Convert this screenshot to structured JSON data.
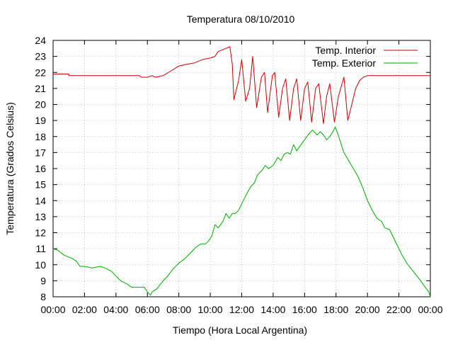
{
  "chart_data": {
    "type": "line",
    "title": "Temperatura 08/10/2010",
    "xlabel": "Tiempo (Hora Local Argentina)",
    "ylabel": "Temperatura (Grados Celsius)",
    "xlim": [
      0,
      24
    ],
    "ylim": [
      8,
      24
    ],
    "x_tick_labels": [
      "00:00",
      "02:00",
      "04:00",
      "06:00",
      "08:00",
      "10:00",
      "12:00",
      "14:00",
      "16:00",
      "18:00",
      "20:00",
      "22:00",
      "00:00"
    ],
    "y_tick_labels": [
      "8",
      "9",
      "10",
      "11",
      "12",
      "13",
      "14",
      "15",
      "16",
      "17",
      "18",
      "19",
      "20",
      "21",
      "22",
      "23",
      "24"
    ],
    "grid": true,
    "legend_position": "top-right",
    "x_unit": "hours",
    "series": [
      {
        "name": "Temp. Interior",
        "color": "#cc0000",
        "points": [
          [
            0,
            21.9
          ],
          [
            1,
            21.9
          ],
          [
            1,
            21.8
          ],
          [
            2,
            21.8
          ],
          [
            4,
            21.8
          ],
          [
            5.5,
            21.8
          ],
          [
            5.6,
            21.7
          ],
          [
            6,
            21.7
          ],
          [
            6.3,
            21.8
          ],
          [
            6.5,
            21.7
          ],
          [
            7,
            21.8
          ],
          [
            7.5,
            22.1
          ],
          [
            8,
            22.4
          ],
          [
            8.5,
            22.5
          ],
          [
            9,
            22.6
          ],
          [
            9.5,
            22.8
          ],
          [
            10,
            22.9
          ],
          [
            10.3,
            23.0
          ],
          [
            10.5,
            23.3
          ],
          [
            11,
            23.5
          ],
          [
            11.25,
            23.6
          ],
          [
            11.4,
            22.5
          ],
          [
            11.5,
            20.3
          ],
          [
            11.8,
            21.5
          ],
          [
            12.0,
            22.8
          ],
          [
            12.25,
            20.2
          ],
          [
            12.5,
            21.0
          ],
          [
            12.7,
            23.0
          ],
          [
            12.95,
            19.8
          ],
          [
            13.25,
            21.7
          ],
          [
            13.45,
            22.0
          ],
          [
            13.65,
            19.5
          ],
          [
            13.95,
            21.8
          ],
          [
            14.1,
            22.0
          ],
          [
            14.35,
            19.2
          ],
          [
            14.6,
            21.0
          ],
          [
            14.8,
            21.6
          ],
          [
            15.05,
            19.0
          ],
          [
            15.3,
            21.0
          ],
          [
            15.5,
            21.6
          ],
          [
            15.75,
            19.0
          ],
          [
            16.0,
            21.0
          ],
          [
            16.2,
            21.4
          ],
          [
            16.45,
            18.9
          ],
          [
            16.7,
            21.0
          ],
          [
            16.9,
            21.3
          ],
          [
            17.2,
            18.8
          ],
          [
            17.4,
            20.5
          ],
          [
            17.6,
            21.3
          ],
          [
            17.9,
            18.9
          ],
          [
            18.15,
            20.5
          ],
          [
            18.5,
            21.7
          ],
          [
            18.75,
            19.0
          ],
          [
            19.0,
            20.0
          ],
          [
            19.25,
            21.0
          ],
          [
            19.5,
            21.5
          ],
          [
            19.75,
            21.7
          ],
          [
            20,
            21.8
          ],
          [
            21,
            21.8
          ],
          [
            22,
            21.8
          ],
          [
            24,
            21.8
          ]
        ]
      },
      {
        "name": "Temp. Exterior",
        "color": "#00aa00",
        "points": [
          [
            0,
            11.0
          ],
          [
            0.3,
            10.9
          ],
          [
            0.7,
            10.6
          ],
          [
            1.2,
            10.4
          ],
          [
            1.5,
            10.2
          ],
          [
            1.7,
            9.9
          ],
          [
            2.0,
            9.9
          ],
          [
            2.5,
            9.8
          ],
          [
            3.0,
            9.9
          ],
          [
            3.3,
            9.8
          ],
          [
            3.7,
            9.6
          ],
          [
            4.0,
            9.3
          ],
          [
            4.3,
            9.0
          ],
          [
            4.7,
            8.8
          ],
          [
            5.0,
            8.6
          ],
          [
            5.3,
            8.6
          ],
          [
            5.8,
            8.6
          ],
          [
            6.0,
            8.3
          ],
          [
            6.2,
            8.1
          ],
          [
            6.3,
            8.3
          ],
          [
            6.6,
            8.5
          ],
          [
            7.0,
            9.0
          ],
          [
            7.3,
            9.3
          ],
          [
            7.6,
            9.7
          ],
          [
            8.0,
            10.1
          ],
          [
            8.4,
            10.4
          ],
          [
            8.8,
            10.8
          ],
          [
            9.1,
            11.1
          ],
          [
            9.4,
            11.3
          ],
          [
            9.7,
            11.3
          ],
          [
            9.9,
            11.5
          ],
          [
            10.1,
            11.8
          ],
          [
            10.3,
            12.5
          ],
          [
            10.5,
            12.3
          ],
          [
            10.8,
            12.7
          ],
          [
            11.0,
            13.2
          ],
          [
            11.2,
            12.9
          ],
          [
            11.4,
            13.2
          ],
          [
            11.6,
            13.2
          ],
          [
            11.8,
            13.4
          ],
          [
            12.0,
            13.8
          ],
          [
            12.3,
            14.4
          ],
          [
            12.6,
            14.9
          ],
          [
            12.8,
            15.1
          ],
          [
            13.0,
            15.6
          ],
          [
            13.3,
            15.9
          ],
          [
            13.5,
            16.2
          ],
          [
            13.7,
            16.0
          ],
          [
            14.0,
            16.2
          ],
          [
            14.3,
            16.7
          ],
          [
            14.5,
            16.5
          ],
          [
            14.7,
            16.9
          ],
          [
            14.9,
            17.0
          ],
          [
            15.1,
            16.9
          ],
          [
            15.3,
            17.5
          ],
          [
            15.5,
            17.1
          ],
          [
            15.7,
            17.4
          ],
          [
            16.0,
            17.8
          ],
          [
            16.3,
            18.2
          ],
          [
            16.5,
            18.4
          ],
          [
            16.8,
            18.1
          ],
          [
            17.0,
            18.3
          ],
          [
            17.2,
            18.1
          ],
          [
            17.4,
            17.8
          ],
          [
            17.6,
            18.0
          ],
          [
            17.8,
            18.3
          ],
          [
            17.95,
            18.6
          ],
          [
            18.1,
            18.2
          ],
          [
            18.3,
            17.6
          ],
          [
            18.5,
            17.0
          ],
          [
            18.8,
            16.5
          ],
          [
            19.1,
            16.0
          ],
          [
            19.4,
            15.5
          ],
          [
            19.7,
            14.8
          ],
          [
            20.0,
            14.0
          ],
          [
            20.3,
            13.4
          ],
          [
            20.6,
            12.9
          ],
          [
            20.9,
            12.7
          ],
          [
            21.1,
            12.3
          ],
          [
            21.4,
            12.2
          ],
          [
            21.6,
            11.8
          ],
          [
            21.9,
            11.2
          ],
          [
            22.2,
            10.6
          ],
          [
            22.5,
            10.1
          ],
          [
            22.9,
            9.6
          ],
          [
            23.3,
            9.1
          ],
          [
            23.6,
            8.7
          ],
          [
            23.9,
            8.3
          ],
          [
            24,
            8.0
          ]
        ]
      }
    ]
  }
}
